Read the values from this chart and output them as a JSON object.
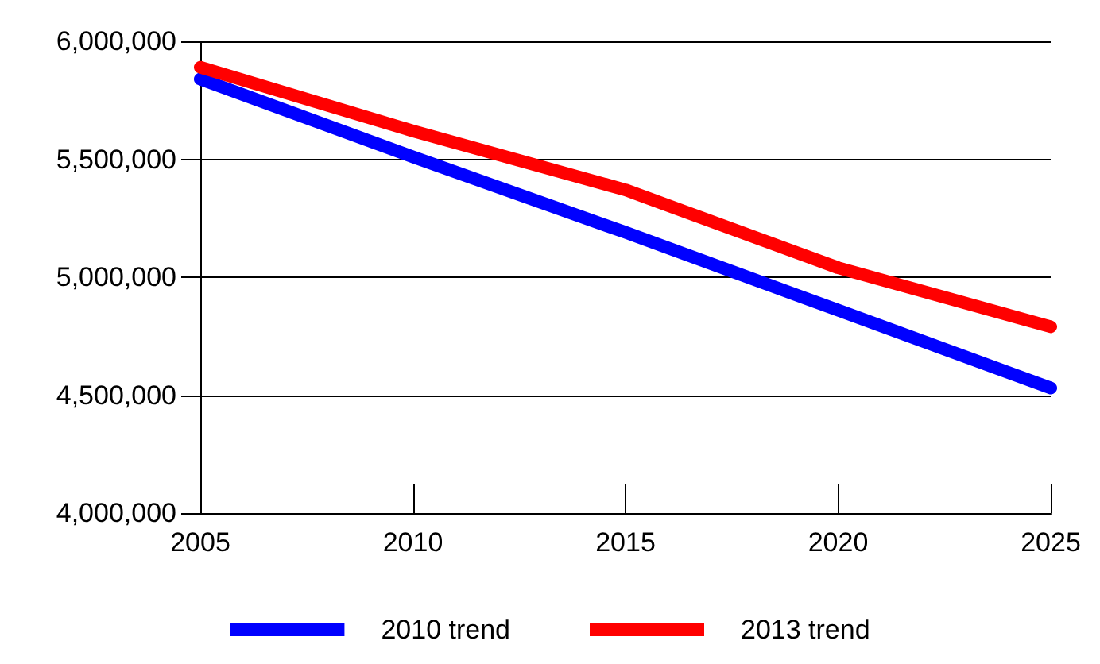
{
  "chart_data": {
    "type": "line",
    "x": [
      2005,
      2010,
      2015,
      2020,
      2025
    ],
    "series": [
      {
        "name": "2010 trend",
        "color": "#0000ff",
        "values": [
          5840000,
          5510000,
          5190000,
          4860000,
          4530000
        ]
      },
      {
        "name": "2013 trend",
        "color": "#ff0000",
        "values": [
          5890000,
          5620000,
          5370000,
          5040000,
          4790000
        ]
      }
    ],
    "xlim": [
      2005,
      2025
    ],
    "xticks": [
      2005,
      2010,
      2015,
      2020,
      2025
    ],
    "ylim": [
      4000000,
      6000000
    ],
    "yticks": [
      {
        "value": 4000000,
        "label": "4,000,000"
      },
      {
        "value": 4500000,
        "label": "4,500,000"
      },
      {
        "value": 5000000,
        "label": "5,000,000"
      },
      {
        "value": 5500000,
        "label": "5,500,000"
      },
      {
        "value": 6000000,
        "label": "6,000,000"
      }
    ],
    "grid": "y",
    "legend": "bottom",
    "marker": "none",
    "line_style": "solid"
  }
}
